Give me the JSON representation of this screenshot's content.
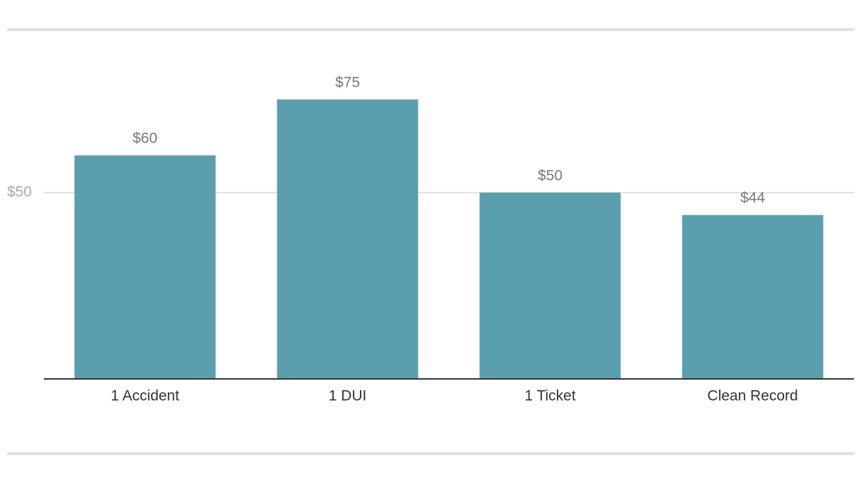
{
  "chart_data": {
    "type": "bar",
    "categories": [
      "1 Accident",
      "1 DUI",
      "1 Ticket",
      "Clean Record"
    ],
    "values": [
      60,
      75,
      50,
      44
    ],
    "value_labels": [
      "$60",
      "$75",
      "$50",
      "$44"
    ],
    "color": "#5b9eae",
    "ylim": [
      0,
      90
    ],
    "yticks": [
      {
        "value": 50,
        "label": "$50"
      }
    ],
    "grid": true
  }
}
